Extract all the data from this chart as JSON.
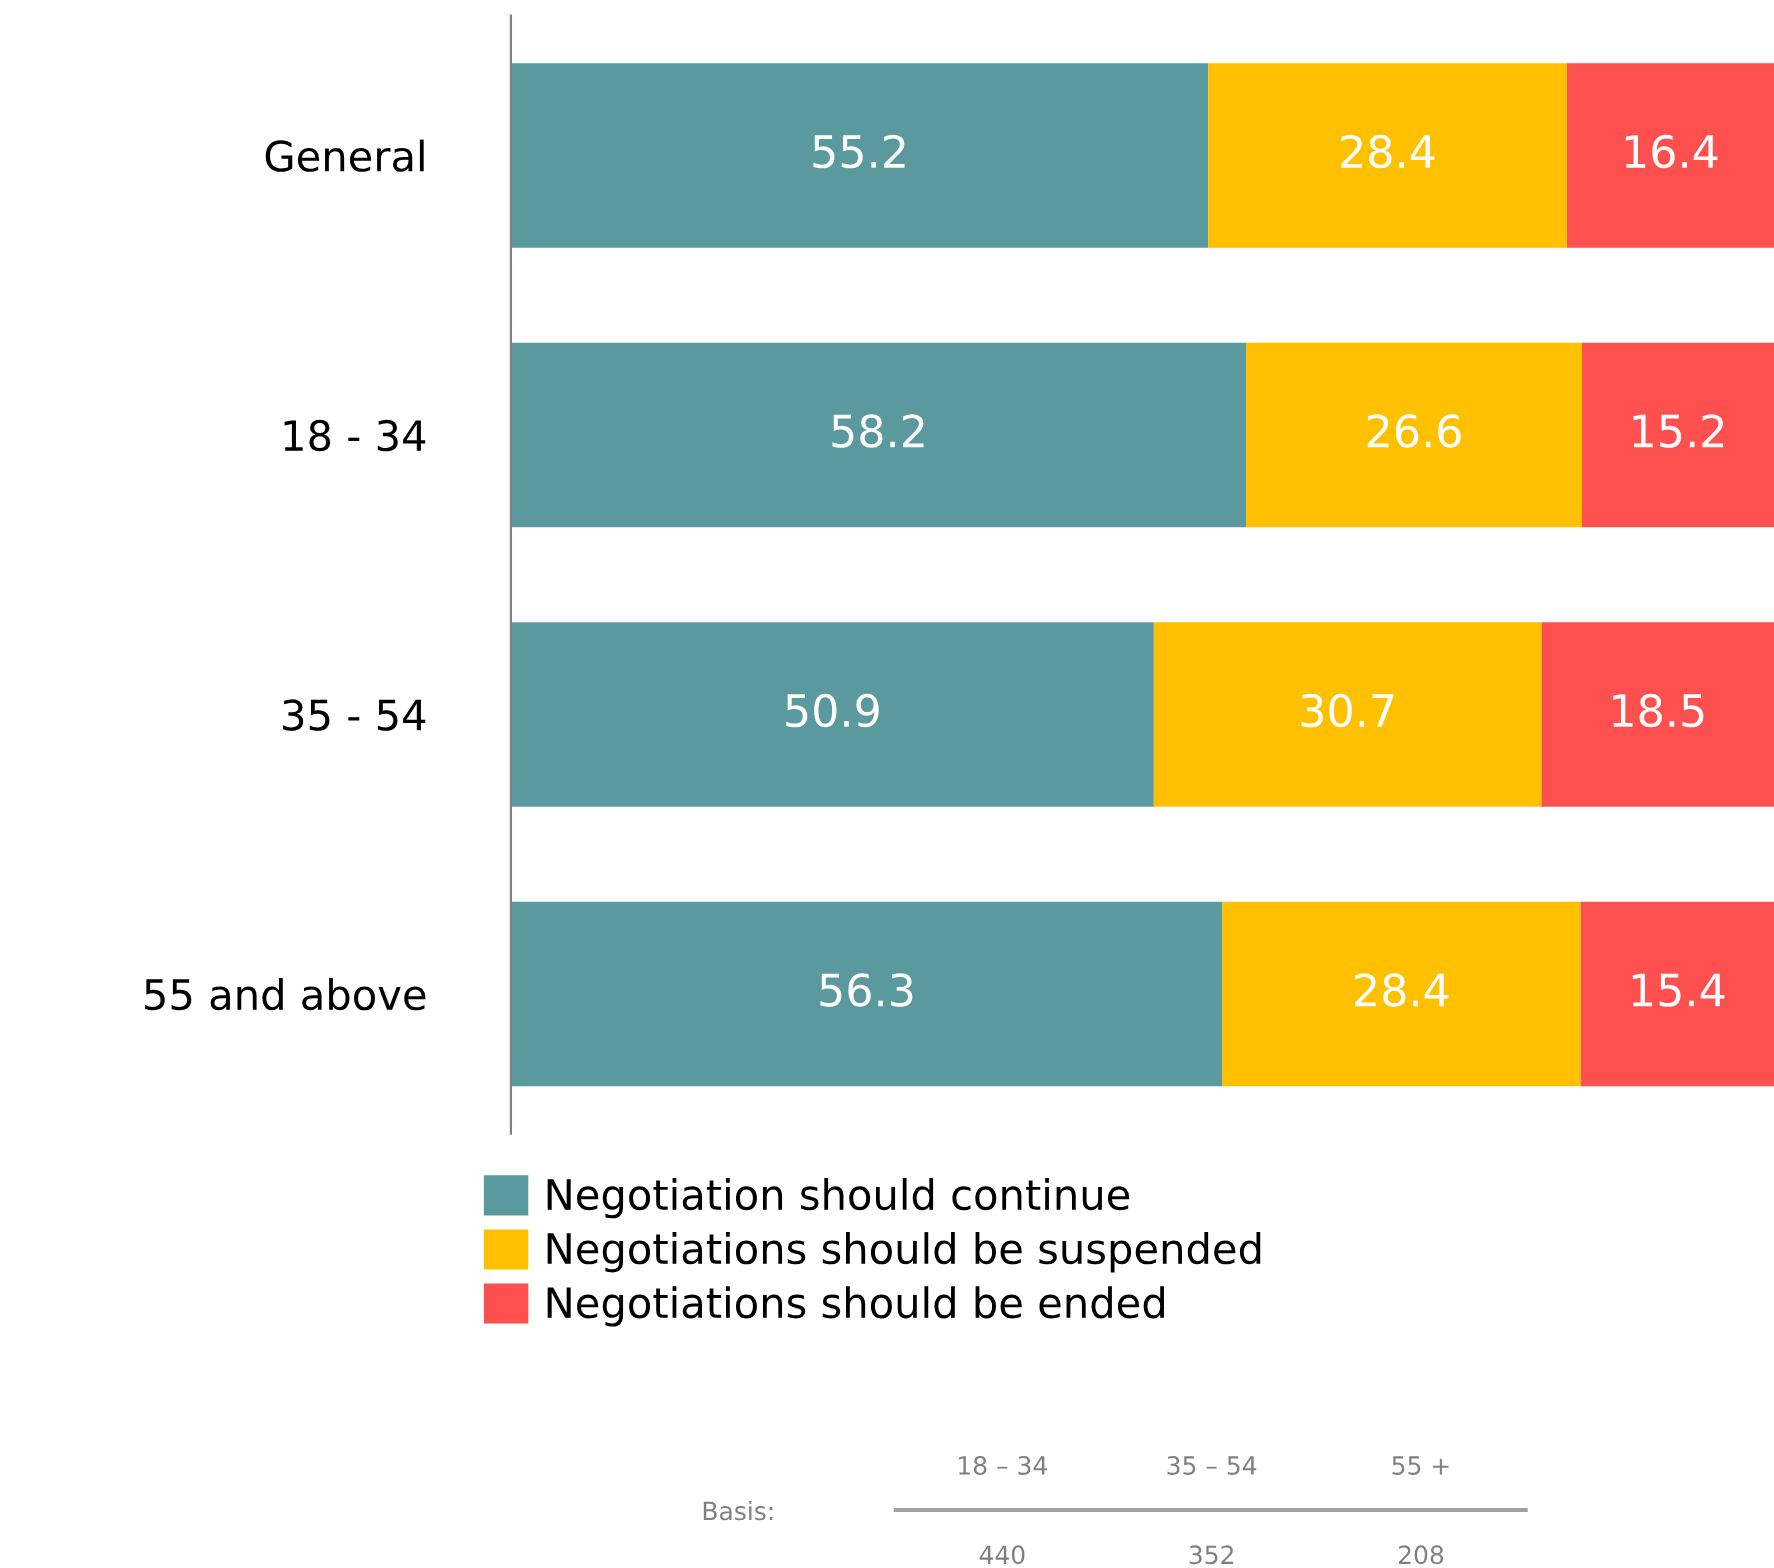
{
  "chart_data": {
    "type": "bar",
    "orientation": "horizontal",
    "stacked": true,
    "categories": [
      "General",
      "18 - 34",
      "35 - 54",
      "55 and above"
    ],
    "series": [
      {
        "name": "Negotiation should continue",
        "color": "#5a9a9e",
        "values": [
          55.2,
          58.2,
          50.9,
          56.3
        ]
      },
      {
        "name": "Negotiations should be suspended",
        "color": "#ffc000",
        "values": [
          28.4,
          26.6,
          30.7,
          28.4
        ]
      },
      {
        "name": "Negotiations should be ended",
        "color": "#ff5050",
        "values": [
          16.4,
          15.2,
          18.5,
          15.4
        ]
      }
    ],
    "xlim": [
      0,
      100
    ],
    "data_labels": true,
    "legend": "bottom",
    "tick_labels": "y",
    "grid": false,
    "annotations": [
      "Basis:",
      "18 – 34",
      "35 – 54",
      "55 +",
      "440",
      "352",
      "208"
    ]
  }
}
